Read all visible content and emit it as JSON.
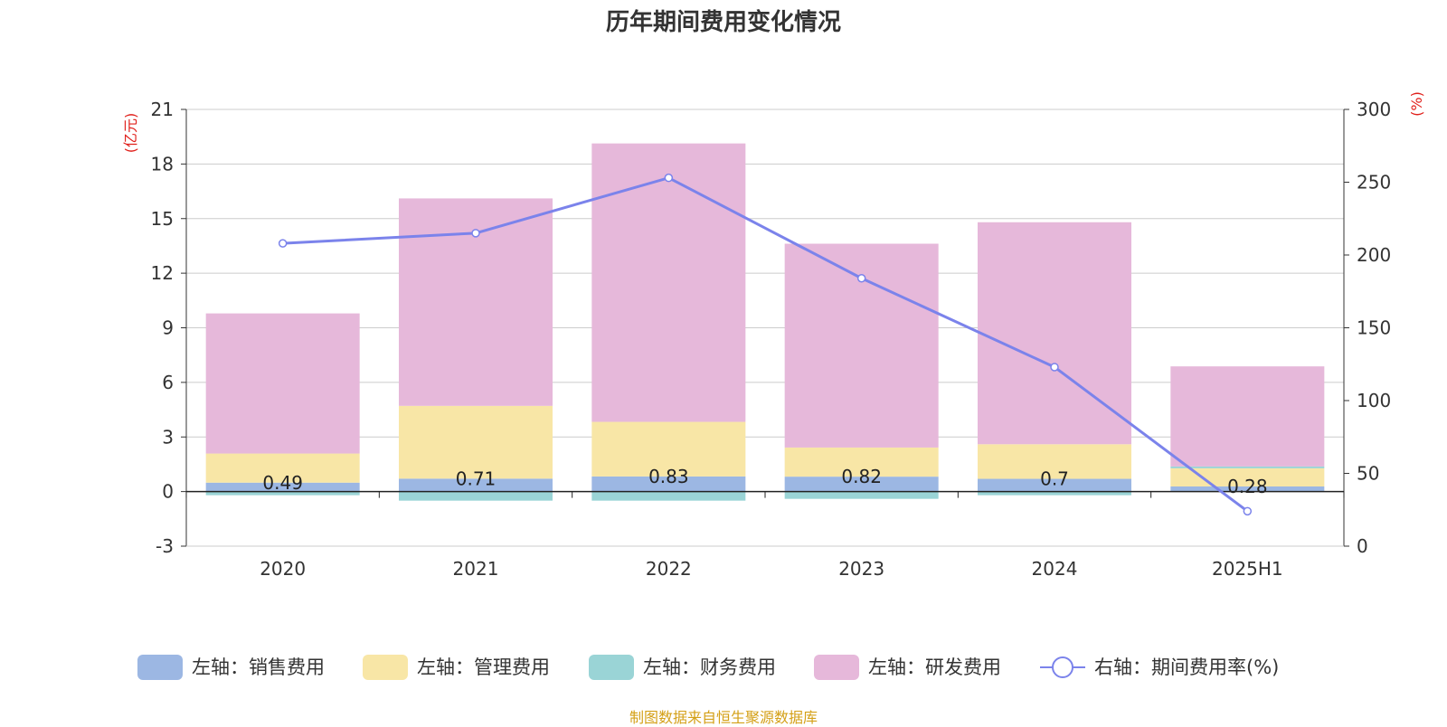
{
  "title": "历年期间费用变化情况",
  "source": "制图数据来自恒生聚源数据库",
  "colors": {
    "sales": "#9cb7e3",
    "admin": "#f8e6a6",
    "finance": "#9ad4d6",
    "rnd": "#e6b8da",
    "rate_line": "#7b83eb",
    "axis_unit": "#e0201b",
    "source": "#d4a017",
    "text": "#333333"
  },
  "chart_data": {
    "type": "bar",
    "title": "历年期间费用变化情况",
    "categories": [
      "2020",
      "2021",
      "2022",
      "2023",
      "2024",
      "2025H1"
    ],
    "left_axis": {
      "unit": "(亿元)",
      "ylim": [
        -3,
        21
      ],
      "ticks": [
        "-3",
        "0",
        "3",
        "6",
        "9",
        "12",
        "15",
        "18",
        "21"
      ]
    },
    "right_axis": {
      "unit": "(%)",
      "ylim": [
        0,
        300
      ],
      "ticks": [
        "0",
        "50",
        "100",
        "150",
        "200",
        "250",
        "300"
      ]
    },
    "series": [
      {
        "name": "左轴：销售费用",
        "kind": "bar",
        "axis": "left",
        "color_key": "sales",
        "values": [
          0.49,
          0.71,
          0.83,
          0.82,
          0.7,
          0.28
        ],
        "labels": [
          "0.49",
          "0.71",
          "0.83",
          "0.82",
          "0.7",
          "0.28"
        ]
      },
      {
        "name": "左轴：管理费用",
        "kind": "bar",
        "axis": "left",
        "color_key": "admin",
        "values": [
          1.6,
          4.0,
          3.0,
          1.6,
          1.9,
          1.0
        ]
      },
      {
        "name": "左轴：财务费用",
        "kind": "bar",
        "axis": "left",
        "color_key": "finance",
        "values": [
          -0.2,
          -0.5,
          -0.5,
          -0.4,
          -0.2,
          0.1
        ]
      },
      {
        "name": "左轴：研发费用",
        "kind": "bar",
        "axis": "left",
        "color_key": "rnd",
        "values": [
          7.7,
          11.4,
          15.3,
          11.2,
          12.2,
          5.5
        ]
      },
      {
        "name": "右轴：期间费用率(%)",
        "kind": "line",
        "axis": "right",
        "color_key": "rate_line",
        "values": [
          208,
          215,
          253,
          184,
          123,
          24
        ]
      }
    ],
    "grid": true,
    "legend_position": "bottom"
  }
}
